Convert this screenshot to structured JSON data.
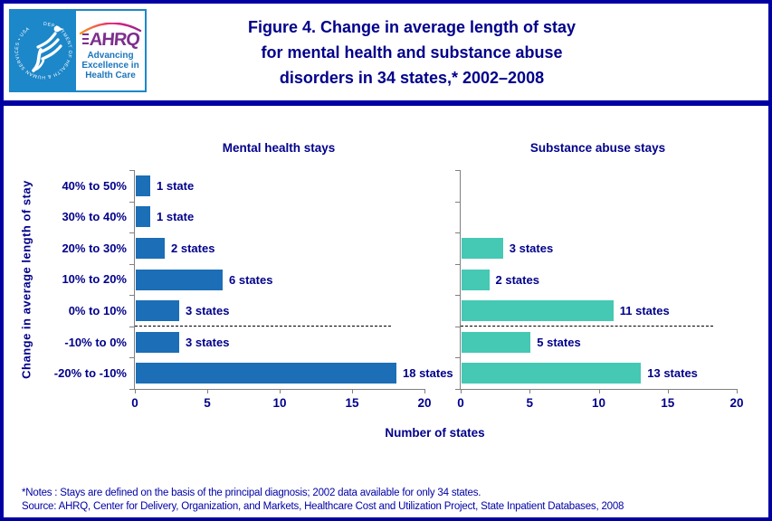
{
  "header": {
    "logo": {
      "seal_text": "DEPARTMENT OF HEALTH & HUMAN SERVICES • USA",
      "acronym": "AHRQ",
      "tagline_lines": [
        "Advancing",
        "Excellence in",
        "Health Care"
      ]
    },
    "title_lines": [
      "Figure 4. Change in average length of stay",
      "for mental health and substance abuse",
      "disorders in 34 states,* 2002–2008"
    ]
  },
  "chart_data": {
    "type": "bar",
    "orientation": "horizontal",
    "categories": [
      "40% to 50%",
      "30% to 40%",
      "20% to 30%",
      "10% to 20%",
      "0% to 10%",
      "-10% to 0%",
      "-20% to -10%"
    ],
    "series": [
      {
        "name": "Mental health stays",
        "color": "#1C6EB6",
        "values": [
          1,
          1,
          2,
          6,
          3,
          3,
          18
        ],
        "labels": [
          "1 state",
          "1 state",
          "2 states",
          "6 states",
          "3 states",
          "3 states",
          "18 states"
        ]
      },
      {
        "name": "Substance abuse stays",
        "color": "#45C8B4",
        "values": [
          0,
          0,
          3,
          2,
          11,
          5,
          13
        ],
        "labels": [
          "",
          "",
          "3 states",
          "2 states",
          "11 states",
          "5 states",
          "13 states"
        ]
      }
    ],
    "xlabel": "Number of states",
    "ylabel": "Change in average length of stay",
    "xlim": [
      0,
      20
    ],
    "xticks": [
      0,
      5,
      10,
      15,
      20
    ],
    "zero_line_between": [
      "0% to 10%",
      "-10% to 0%"
    ],
    "grid": false,
    "legend_position": "none"
  },
  "footer": {
    "notes": "*Notes :  Stays are defined on the basis of the principal diagnosis; 2002 data available for only 34 states.",
    "source": "Source:  AHRQ, Center for Delivery, Organization, and Markets, Healthcare Cost and Utilization Project, State Inpatient Databases, 2008"
  },
  "colors": {
    "frame_navy": "#0101A3",
    "text_navy": "#00008B",
    "footer_blue": "#0000A6",
    "axis_gray": "#808080",
    "seal_blue": "#1C87C9",
    "ahrq_purple": "#7D2F8D",
    "tagline_blue": "#1B75BC"
  }
}
